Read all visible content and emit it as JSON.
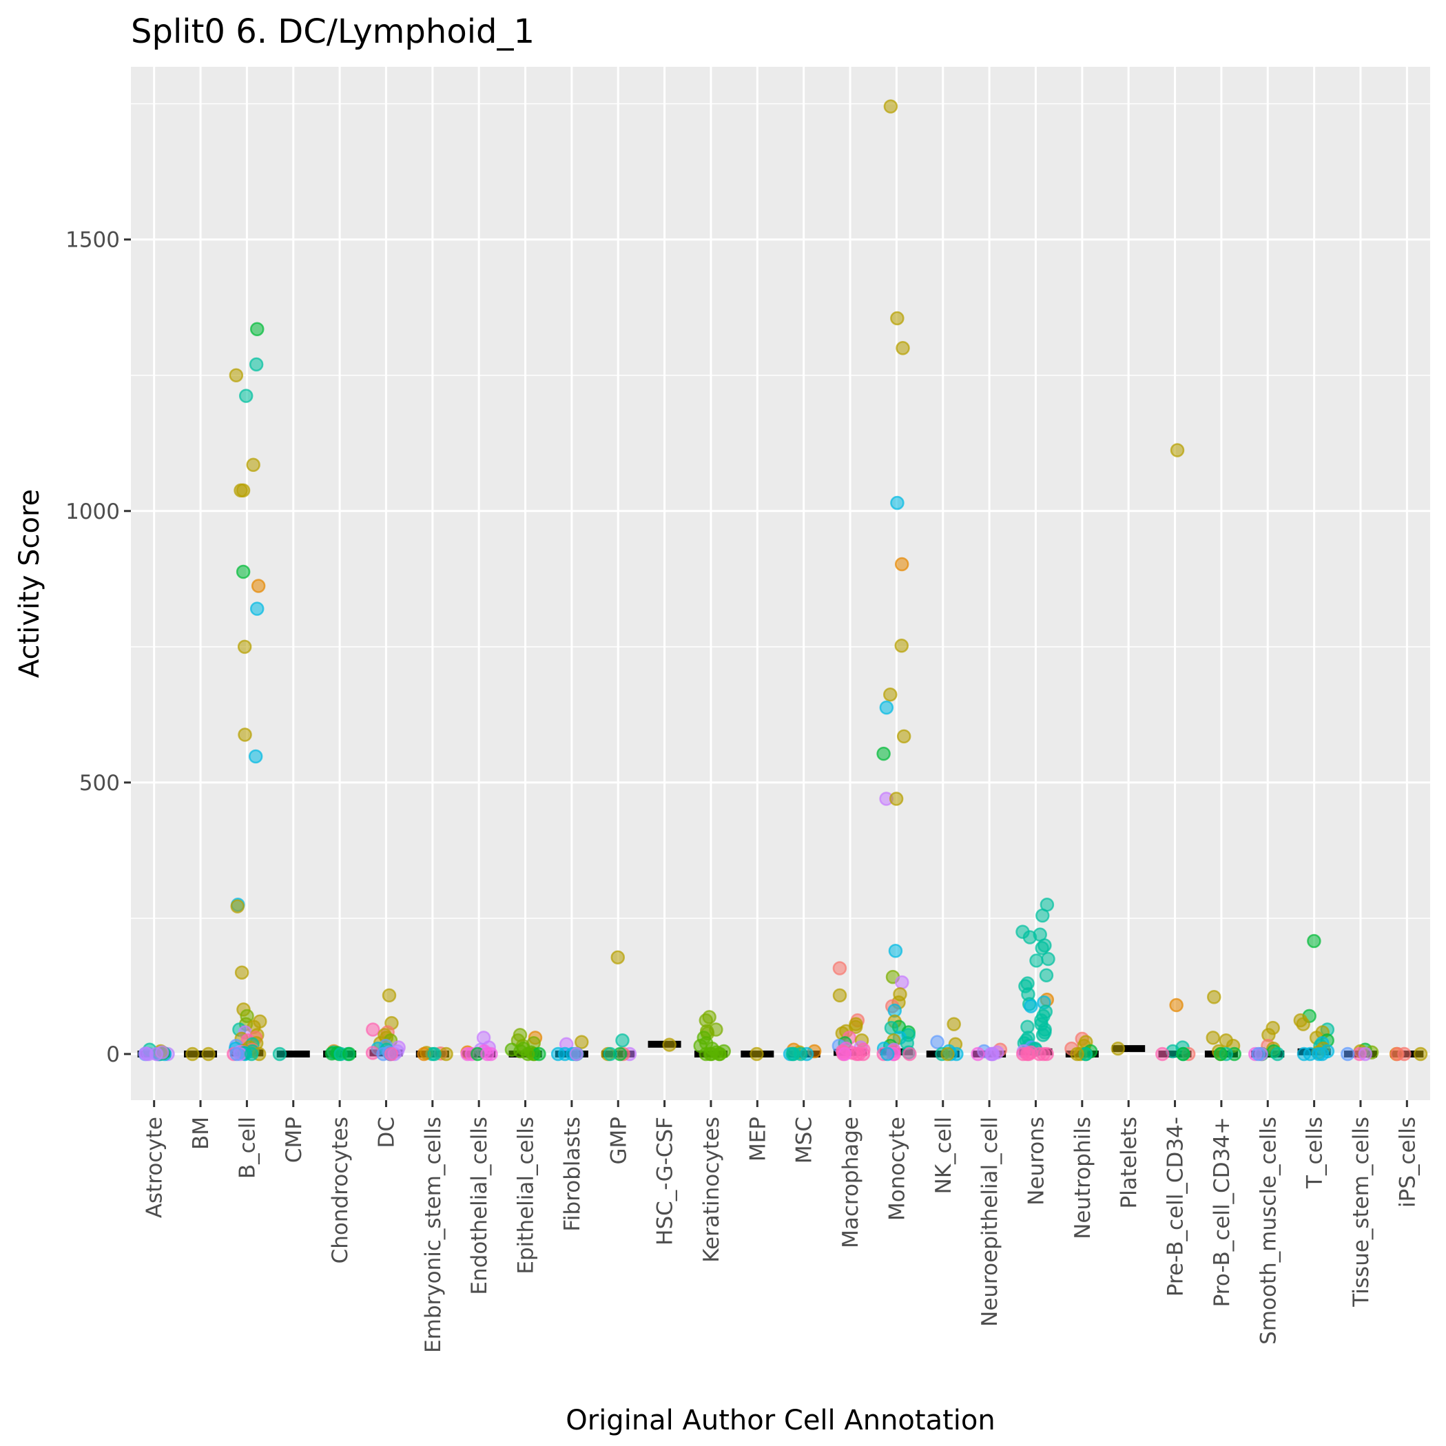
{
  "chart_data": {
    "type": "scatter",
    "subtype": "jitter-strip with median crossbars",
    "title": "Split0 6. DC/Lymphoid_1",
    "xlabel": "Original Author Cell Annotation",
    "ylabel": "Activity Score",
    "ylim": [
      -85,
      1818
    ],
    "yticks": [
      0,
      500,
      1000,
      1500
    ],
    "ytick_labels": [
      "0",
      "500",
      "1000",
      "1500"
    ],
    "grid": true,
    "legend": "none",
    "categories": [
      "Astrocyte",
      "BM",
      "B_cell",
      "CMP",
      "Chondrocytes",
      "DC",
      "Embryonic_stem_cells",
      "Endothelial_cells",
      "Epithelial_cells",
      "Fibroblasts",
      "GMP",
      "HSC_-G-CSF",
      "Keratinocytes",
      "MEP",
      "MSC",
      "Macrophage",
      "Monocyte",
      "NK_cell",
      "Neuroepithelial_cell",
      "Neurons",
      "Neutrophils",
      "Platelets",
      "Pre-B_cell_CD34-",
      "Pro-B_cell_CD34+",
      "Smooth_muscle_cells",
      "T_cells",
      "Tissue_stem_cells",
      "iPS_cells"
    ],
    "palette": {
      "red": "#F8766D",
      "orange": "#E58700",
      "olive": "#B79F00",
      "yellowgreen": "#7CAE00",
      "green": "#00BA38",
      "teal": "#00C19F",
      "cyan": "#00B9E3",
      "blue": "#619CFF",
      "purple": "#C77CFF",
      "violet": "#B983FF",
      "magenta": "#F564E3",
      "pink": "#FF64B0",
      "lime": "#5BB300"
    },
    "medians": [
      0,
      0,
      2,
      0,
      0,
      2,
      0,
      0,
      0,
      0,
      0,
      18,
      0,
      0,
      0,
      3,
      4,
      0,
      0,
      4,
      0,
      10,
      0,
      0,
      0,
      4,
      0,
      0
    ],
    "points": [
      {
        "cat": 0,
        "values": [
          0,
          0,
          0,
          0,
          0,
          0,
          0,
          0,
          0,
          2,
          5,
          8,
          3,
          1,
          0,
          0
        ],
        "colors": [
          "violet",
          "violet",
          "violet",
          "violet",
          "violet",
          "blue",
          "blue",
          "cyan",
          "teal",
          "green",
          "olive",
          "teal",
          "violet",
          "violet",
          "violet",
          "violet"
        ]
      },
      {
        "cat": 1,
        "values": [
          0,
          0
        ],
        "colors": [
          "olive",
          "olive"
        ]
      },
      {
        "cat": 2,
        "values": [
          1335,
          1270,
          1250,
          1212,
          1085,
          1038,
          1038,
          888,
          862,
          820,
          750,
          588,
          548,
          275,
          272,
          150,
          82,
          70,
          60,
          55,
          50,
          45,
          40,
          35,
          30,
          28,
          25,
          20,
          18,
          15,
          12,
          10,
          8,
          6,
          5,
          4,
          3,
          2,
          1,
          0,
          0,
          0,
          0,
          0,
          0
        ],
        "colors": [
          "green",
          "teal",
          "olive",
          "teal",
          "olive",
          "olive",
          "olive",
          "green",
          "orange",
          "cyan",
          "olive",
          "olive",
          "cyan",
          "cyan",
          "olive",
          "olive",
          "olive",
          "yellowgreen",
          "olive",
          "yellowgreen",
          "olive",
          "teal",
          "purple",
          "olive",
          "red",
          "olive",
          "pink",
          "olive",
          "teal",
          "blue",
          "olive",
          "cyan",
          "red",
          "olive",
          "teal",
          "purple",
          "pink",
          "cyan",
          "green",
          "olive",
          "cyan",
          "pink",
          "purple",
          "blue",
          "teal"
        ]
      },
      {
        "cat": 3,
        "values": [
          0
        ],
        "colors": [
          "teal"
        ]
      },
      {
        "cat": 4,
        "values": [
          5,
          3,
          2,
          1,
          0,
          0,
          0,
          0
        ],
        "colors": [
          "orange",
          "teal",
          "green",
          "green",
          "teal",
          "green",
          "teal",
          "green"
        ]
      },
      {
        "cat": 5,
        "values": [
          108,
          57,
          45,
          40,
          35,
          30,
          25,
          20,
          15,
          12,
          10,
          8,
          5,
          3,
          2,
          0,
          0,
          0,
          0,
          0
        ],
        "colors": [
          "olive",
          "olive",
          "pink",
          "red",
          "olive",
          "olive",
          "yellowgreen",
          "olive",
          "blue",
          "purple",
          "cyan",
          "teal",
          "violet",
          "blue",
          "pink",
          "pink",
          "cyan",
          "blue",
          "violet",
          "pink"
        ]
      },
      {
        "cat": 6,
        "values": [
          2,
          1,
          0,
          0,
          0,
          0
        ],
        "colors": [
          "olive",
          "red",
          "olive",
          "teal",
          "orange",
          "teal"
        ]
      },
      {
        "cat": 7,
        "values": [
          30,
          12,
          8,
          5,
          3,
          0,
          0,
          0,
          0,
          0
        ],
        "colors": [
          "purple",
          "purple",
          "violet",
          "magenta",
          "orange",
          "magenta",
          "magenta",
          "magenta",
          "green",
          "magenta"
        ]
      },
      {
        "cat": 8,
        "values": [
          35,
          30,
          25,
          20,
          15,
          10,
          8,
          5,
          3,
          0,
          0,
          0,
          0
        ],
        "colors": [
          "yellowgreen",
          "orange",
          "yellowgreen",
          "yellowgreen",
          "yellowgreen",
          "lime",
          "lime",
          "lime",
          "lime",
          "lime",
          "lime",
          "green",
          "lime"
        ]
      },
      {
        "cat": 9,
        "values": [
          22,
          18,
          0,
          0,
          0,
          0,
          0,
          0
        ],
        "colors": [
          "olive",
          "purple",
          "cyan",
          "cyan",
          "cyan",
          "cyan",
          "teal",
          "purple"
        ]
      },
      {
        "cat": 10,
        "values": [
          178,
          25,
          0,
          0,
          0,
          0,
          0
        ],
        "colors": [
          "olive",
          "teal",
          "purple",
          "red",
          "olive",
          "green",
          "teal"
        ]
      },
      {
        "cat": 11,
        "values": [
          17
        ],
        "colors": [
          "olive"
        ]
      },
      {
        "cat": 12,
        "values": [
          68,
          62,
          45,
          42,
          38,
          30,
          20,
          15,
          10,
          5,
          3,
          0,
          0,
          0,
          0,
          0
        ],
        "colors": [
          "yellowgreen",
          "yellowgreen",
          "yellowgreen",
          "yellowgreen",
          "yellowgreen",
          "lime",
          "lime",
          "lime",
          "lime",
          "lime",
          "lime",
          "lime",
          "lime",
          "lime",
          "lime",
          "lime"
        ]
      },
      {
        "cat": 13,
        "values": [
          0
        ],
        "colors": [
          "olive"
        ]
      },
      {
        "cat": 14,
        "values": [
          8,
          5,
          3,
          0,
          0,
          0,
          0,
          0
        ],
        "colors": [
          "orange",
          "orange",
          "olive",
          "cyan",
          "cyan",
          "teal",
          "teal",
          "teal"
        ]
      },
      {
        "cat": 15,
        "values": [
          158,
          108,
          62,
          55,
          50,
          42,
          38,
          30,
          25,
          20,
          15,
          12,
          10,
          8,
          5,
          3,
          2,
          0,
          0,
          0,
          0,
          0
        ],
        "colors": [
          "red",
          "olive",
          "red",
          "olive",
          "olive",
          "olive",
          "olive",
          "pink",
          "olive",
          "green",
          "blue",
          "purple",
          "magenta",
          "pink",
          "pink",
          "pink",
          "pink",
          "pink",
          "pink",
          "pink",
          "magenta",
          "pink"
        ]
      },
      {
        "cat": 16,
        "values": [
          1745,
          1355,
          1300,
          1015,
          902,
          752,
          662,
          638,
          585,
          553,
          470,
          470,
          190,
          142,
          132,
          110,
          95,
          88,
          80,
          60,
          50,
          48,
          40,
          35,
          30,
          25,
          20,
          15,
          10,
          8,
          5,
          3,
          0,
          0,
          0,
          0,
          0
        ],
        "colors": [
          "olive",
          "olive",
          "olive",
          "cyan",
          "orange",
          "olive",
          "olive",
          "cyan",
          "olive",
          "green",
          "purple",
          "olive",
          "cyan",
          "yellowgreen",
          "purple",
          "olive",
          "olive",
          "red",
          "cyan",
          "olive",
          "green",
          "teal",
          "green",
          "teal",
          "cyan",
          "olive",
          "teal",
          "green",
          "cyan",
          "purple",
          "pink",
          "teal",
          "pink",
          "pink",
          "pink",
          "magenta",
          "cyan"
        ]
      },
      {
        "cat": 17,
        "values": [
          55,
          22,
          18,
          5,
          0,
          0,
          0,
          0
        ],
        "colors": [
          "olive",
          "blue",
          "olive",
          "cyan",
          "cyan",
          "cyan",
          "teal",
          "olive"
        ]
      },
      {
        "cat": 18,
        "values": [
          8,
          5,
          3,
          0,
          0,
          0,
          0
        ],
        "colors": [
          "red",
          "blue",
          "purple",
          "magenta",
          "violet",
          "violet",
          "magenta"
        ]
      },
      {
        "cat": 19,
        "values": [
          275,
          255,
          225,
          220,
          215,
          200,
          195,
          175,
          172,
          145,
          130,
          125,
          110,
          100,
          95,
          92,
          88,
          78,
          70,
          62,
          55,
          50,
          45,
          40,
          35,
          30,
          25,
          20,
          15,
          12,
          10,
          8,
          5,
          3,
          0,
          0,
          0,
          0,
          0,
          0
        ],
        "colors": [
          "teal",
          "teal",
          "teal",
          "teal",
          "teal",
          "teal",
          "teal",
          "teal",
          "teal",
          "teal",
          "teal",
          "teal",
          "teal",
          "orange",
          "cyan",
          "teal",
          "cyan",
          "teal",
          "teal",
          "teal",
          "teal",
          "teal",
          "teal",
          "teal",
          "teal",
          "teal",
          "teal",
          "teal",
          "teal",
          "blue",
          "teal",
          "teal",
          "violet",
          "pink",
          "pink",
          "pink",
          "pink",
          "pink",
          "pink",
          "pink"
        ]
      },
      {
        "cat": 20,
        "values": [
          28,
          22,
          15,
          10,
          5,
          0,
          0,
          0,
          0
        ],
        "colors": [
          "red",
          "olive",
          "olive",
          "red",
          "green",
          "olive",
          "green",
          "teal",
          "olive"
        ]
      },
      {
        "cat": 21,
        "values": [
          10
        ],
        "colors": [
          "olive"
        ]
      },
      {
        "cat": 22,
        "values": [
          1112,
          90,
          12,
          5,
          0,
          0,
          0,
          0
        ],
        "colors": [
          "olive",
          "orange",
          "teal",
          "teal",
          "pink",
          "red",
          "teal",
          "green"
        ]
      },
      {
        "cat": 23,
        "values": [
          105,
          30,
          25,
          15,
          5,
          0,
          0,
          0,
          0
        ],
        "colors": [
          "olive",
          "olive",
          "olive",
          "olive",
          "olive",
          "olive",
          "green",
          "teal",
          "green"
        ]
      },
      {
        "cat": 24,
        "values": [
          48,
          35,
          15,
          10,
          5,
          0,
          0,
          0,
          0,
          0
        ],
        "colors": [
          "olive",
          "olive",
          "red",
          "olive",
          "green",
          "green",
          "purple",
          "magenta",
          "blue",
          "teal"
        ]
      },
      {
        "cat": 25,
        "values": [
          208,
          70,
          62,
          55,
          45,
          40,
          30,
          25,
          20,
          15,
          10,
          5,
          3,
          0,
          0,
          0,
          0
        ],
        "colors": [
          "green",
          "green",
          "olive",
          "olive",
          "teal",
          "olive",
          "olive",
          "green",
          "cyan",
          "teal",
          "olive",
          "cyan",
          "olive",
          "cyan",
          "cyan",
          "cyan",
          "cyan"
        ]
      },
      {
        "cat": 26,
        "values": [
          8,
          5,
          3,
          0,
          0,
          0
        ],
        "colors": [
          "green",
          "olive",
          "yellowgreen",
          "pink",
          "blue",
          "purple"
        ]
      },
      {
        "cat": 27,
        "values": [
          0,
          0,
          0,
          0
        ],
        "colors": [
          "orange",
          "red",
          "olive",
          "red"
        ]
      }
    ]
  }
}
